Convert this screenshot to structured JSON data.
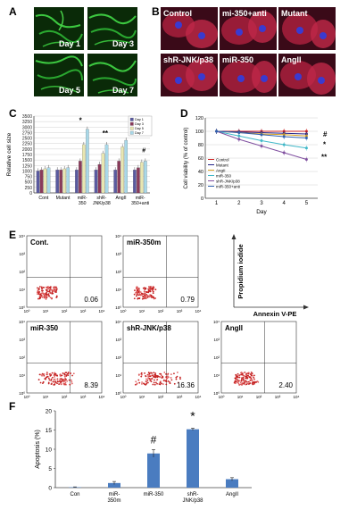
{
  "panels": {
    "A": {
      "letter": "A",
      "images": [
        {
          "label": "Day 1"
        },
        {
          "label": "Day 3"
        },
        {
          "label": "Day 5"
        },
        {
          "label": "Day 7"
        }
      ]
    },
    "B": {
      "letter": "B",
      "images": [
        {
          "label": "Control"
        },
        {
          "label": "mi-350+anti"
        },
        {
          "label": "Mutant"
        },
        {
          "label": "shR-JNK/p38"
        },
        {
          "label": "miR-350"
        },
        {
          "label": "AngII"
        }
      ]
    },
    "C": {
      "letter": "C",
      "annotations": [
        "*",
        "**",
        "#"
      ]
    },
    "D": {
      "letter": "D",
      "annotations": [
        "#",
        "*",
        "**"
      ]
    },
    "E": {
      "letter": "E",
      "plots": [
        {
          "label": "Cont.",
          "value": "0.06"
        },
        {
          "label": "miR-350m",
          "value": "0.79"
        },
        {
          "label": "miR-350",
          "value": "8.39"
        },
        {
          "label": "shR-JNK/p38",
          "value": "16.36"
        },
        {
          "label": "AngII",
          "value": "2.40"
        }
      ],
      "tick_labels": [
        "10⁰",
        "10¹",
        "10²",
        "10³",
        "10⁴"
      ],
      "axis_key": {
        "y": "Propidium iodide",
        "x": "Annexin V-PE"
      }
    },
    "F": {
      "letter": "F",
      "annotations": [
        "#",
        "*"
      ]
    }
  },
  "chart_data": [
    {
      "id": "C",
      "type": "bar",
      "ylabel": "Relative cell size",
      "ylim": [
        0,
        3500
      ],
      "yticks": [
        "0",
        "250",
        "500",
        "750",
        "1000",
        "1250",
        "1500",
        "1750",
        "2000",
        "2250",
        "2500",
        "2750",
        "3000",
        "3250",
        "3500"
      ],
      "categories": [
        "Cont",
        "Mutant",
        "miR-350",
        "shR-JNK/p38",
        "AngII",
        "miR-350+anti"
      ],
      "series": [
        {
          "name": "Day 1",
          "color": "#5a5aa0",
          "values": [
            1000,
            1050,
            1050,
            1050,
            1050,
            1050
          ]
        },
        {
          "name": "Day 3",
          "color": "#8a3a5a",
          "values": [
            1050,
            1050,
            1450,
            1300,
            1450,
            1150
          ]
        },
        {
          "name": "Day 5",
          "color": "#e8e6b0",
          "values": [
            1100,
            1100,
            2200,
            1800,
            2100,
            1400
          ]
        },
        {
          "name": "Day 7",
          "color": "#a8d8e8",
          "values": [
            1150,
            1150,
            2900,
            2200,
            2400,
            1450
          ]
        }
      ],
      "grid": true,
      "legend": "top-right"
    },
    {
      "id": "D",
      "type": "line",
      "ylabel": "Cell viability (% of control)",
      "xlabel": "Day",
      "x": [
        1,
        2,
        3,
        4,
        5
      ],
      "ylim": [
        0,
        120
      ],
      "yticks": [
        "0",
        "20",
        "40",
        "60",
        "80",
        "100",
        "120"
      ],
      "series": [
        {
          "name": "Control",
          "color": "#cc2222",
          "values": [
            100,
            100,
            100,
            100,
            100
          ]
        },
        {
          "name": "Mutant",
          "color": "#222288",
          "values": [
            100,
            99,
            98,
            97,
            96
          ]
        },
        {
          "name": "AngII",
          "color": "#d8a020",
          "values": [
            100,
            98,
            96,
            95,
            93
          ]
        },
        {
          "name": "miR-350",
          "color": "#40b8c8",
          "values": [
            100,
            93,
            86,
            80,
            75
          ]
        },
        {
          "name": "shR-JNK/p38",
          "color": "#8050a0",
          "values": [
            100,
            88,
            78,
            68,
            58
          ]
        },
        {
          "name": "miR-350+anti",
          "color": "#3060b0",
          "values": [
            100,
            98,
            95,
            92,
            90
          ]
        }
      ],
      "grid": true,
      "legend": "bottom-left"
    },
    {
      "id": "F",
      "type": "bar",
      "ylabel": "Apoptosis (%)",
      "ylim": [
        0,
        20
      ],
      "yticks": [
        "0",
        "5",
        "10",
        "15",
        "20"
      ],
      "categories": [
        "Con",
        "miR-350m",
        "miR-350",
        "shR-JNK/p38",
        "AngII"
      ],
      "values": [
        0.1,
        1.2,
        8.9,
        15.2,
        2.2
      ],
      "errors": [
        0.1,
        0.4,
        1.0,
        0.3,
        0.4
      ],
      "color": "#4a7cc0",
      "grid": false
    }
  ]
}
